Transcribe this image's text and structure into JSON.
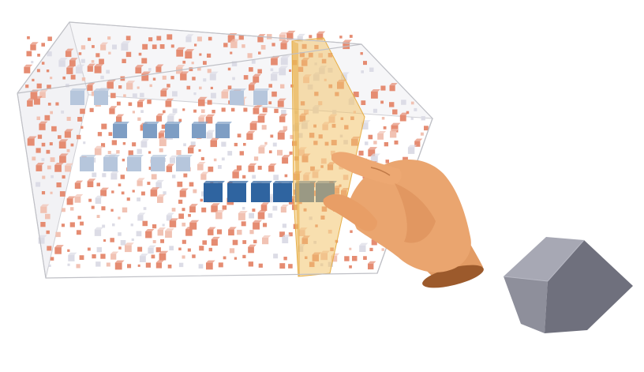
{
  "scene": {
    "description_label": "",
    "colors": {
      "background": "#ffffff",
      "box_edge": "#c8c8cc",
      "box_fill": "#f4f4f6",
      "voxel_warm": "#e58c72",
      "voxel_warm_light": "#f1c2b3",
      "voxel_pale": "#dcdce6",
      "voxel_blue_light": "#b6c6dc",
      "voxel_blue_mid": "#7e9ec4",
      "voxel_blue_dark": "#2f64a0",
      "slice_plane": "#f2c46d",
      "hand_skin": "#e9a06a",
      "hand_shadow": "#b86a3a",
      "cube_front": "#7e7f8c",
      "cube_top": "#a7a8b4",
      "cube_side": "#686976"
    },
    "icons": [
      "hand-pointer-icon",
      "cube-icon"
    ]
  }
}
